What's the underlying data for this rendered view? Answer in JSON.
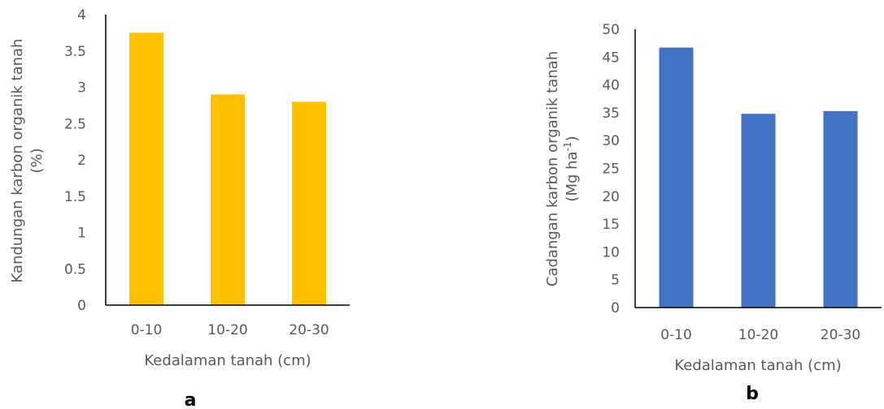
{
  "chart_data": [
    {
      "type": "bar",
      "panel_label": "a",
      "categories": [
        "0-10",
        "10-20",
        "20-30"
      ],
      "values": [
        3.75,
        2.9,
        2.8
      ],
      "xlabel": "Kedalaman tanah (cm)",
      "ylabel_lines": [
        "Kandungan karbon organik tanah",
        "(%)"
      ],
      "yticks": [
        "0",
        "0.5",
        "1",
        "1.5",
        "2",
        "2.5",
        "3",
        "3.5",
        "4"
      ],
      "ylim": [
        0,
        4
      ],
      "grid": false,
      "bar_color": "#FFC000"
    },
    {
      "type": "bar",
      "panel_label": "b",
      "categories": [
        "0-10",
        "10-20",
        "20-30"
      ],
      "values": [
        46.7,
        34.8,
        35.3
      ],
      "xlabel": "Kedalaman tanah (cm)",
      "ylabel_lines": [
        "Cadangan karbon organik tanah",
        "(Mg ha",
        "-1",
        ")"
      ],
      "yticks": [
        "0",
        "5",
        "10",
        "15",
        "20",
        "25",
        "30",
        "35",
        "40",
        "45",
        "50"
      ],
      "ylim": [
        0,
        50
      ],
      "grid": false,
      "bar_color": "#4472C4"
    }
  ]
}
